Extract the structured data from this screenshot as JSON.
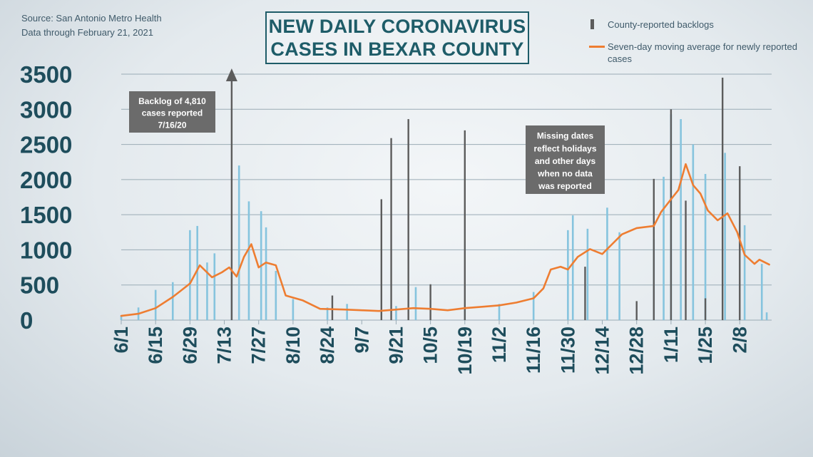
{
  "source_lines": [
    "Source: San Antonio Metro Health",
    "Data through  February 21, 2021"
  ],
  "title_lines": [
    "NEW DAILY CORONAVIRUS",
    "CASES IN BEXAR COUNTY"
  ],
  "legend": {
    "backlog_label": "County-reported backlogs",
    "average_label": "Seven-day moving average for newly reported cases"
  },
  "colors": {
    "daily_bar": "#86c4de",
    "backlog_bar": "#5c5c5c",
    "average_line": "#ee7d31",
    "axis_text": "#1e4d5c",
    "annotation_bg": "#6b6b6b",
    "grid": "#9aabb5"
  },
  "chart_data": {
    "type": "bar",
    "ylim": [
      0,
      3500
    ],
    "y_ticks": [
      0,
      500,
      1000,
      1500,
      2000,
      2500,
      3000,
      3500
    ],
    "x_ticks": [
      "6/1",
      "6/15",
      "6/29",
      "7/13",
      "7/27",
      "8/10",
      "8/24",
      "9/7",
      "9/21",
      "10/5",
      "10/19",
      "11/2",
      "11/16",
      "11/30",
      "12/14",
      "12/28",
      "1/11",
      "1/25",
      "2/8"
    ],
    "start_date": "2020-06-01",
    "end_date": "2021-02-21",
    "grid": true,
    "series": [
      {
        "name": "County-reported backlogs",
        "kind": "bar",
        "points": [
          {
            "x": "2020-07-16",
            "y": 3500,
            "arrow": true
          },
          {
            "x": "2020-08-26",
            "y": 350
          },
          {
            "x": "2020-09-15",
            "y": 1720
          },
          {
            "x": "2020-09-19",
            "y": 2590
          },
          {
            "x": "2020-09-26",
            "y": 2860
          },
          {
            "x": "2020-10-05",
            "y": 510
          },
          {
            "x": "2020-10-19",
            "y": 2700
          },
          {
            "x": "2020-12-07",
            "y": 760
          },
          {
            "x": "2020-12-28",
            "y": 270
          },
          {
            "x": "2021-01-04",
            "y": 2010
          },
          {
            "x": "2021-01-11",
            "y": 3000
          },
          {
            "x": "2021-01-17",
            "y": 1700
          },
          {
            "x": "2021-01-25",
            "y": 310
          },
          {
            "x": "2021-02-01",
            "y": 3450
          },
          {
            "x": "2021-02-08",
            "y": 2190
          }
        ]
      },
      {
        "name": "Seven-day moving average for newly reported cases",
        "kind": "line",
        "points": [
          {
            "x": "2020-06-01",
            "y": 60
          },
          {
            "x": "2020-06-08",
            "y": 90
          },
          {
            "x": "2020-06-15",
            "y": 170
          },
          {
            "x": "2020-06-22",
            "y": 330
          },
          {
            "x": "2020-06-29",
            "y": 520
          },
          {
            "x": "2020-07-03",
            "y": 780
          },
          {
            "x": "2020-07-08",
            "y": 610
          },
          {
            "x": "2020-07-12",
            "y": 680
          },
          {
            "x": "2020-07-15",
            "y": 750
          },
          {
            "x": "2020-07-18",
            "y": 620
          },
          {
            "x": "2020-07-21",
            "y": 900
          },
          {
            "x": "2020-07-24",
            "y": 1080
          },
          {
            "x": "2020-07-27",
            "y": 750
          },
          {
            "x": "2020-07-30",
            "y": 820
          },
          {
            "x": "2020-08-03",
            "y": 780
          },
          {
            "x": "2020-08-07",
            "y": 350
          },
          {
            "x": "2020-08-14",
            "y": 280
          },
          {
            "x": "2020-08-21",
            "y": 160
          },
          {
            "x": "2020-08-31",
            "y": 150
          },
          {
            "x": "2020-09-07",
            "y": 140
          },
          {
            "x": "2020-09-14",
            "y": 130
          },
          {
            "x": "2020-09-21",
            "y": 150
          },
          {
            "x": "2020-09-28",
            "y": 170
          },
          {
            "x": "2020-10-05",
            "y": 160
          },
          {
            "x": "2020-10-12",
            "y": 140
          },
          {
            "x": "2020-10-19",
            "y": 170
          },
          {
            "x": "2020-10-26",
            "y": 190
          },
          {
            "x": "2020-11-02",
            "y": 210
          },
          {
            "x": "2020-11-09",
            "y": 250
          },
          {
            "x": "2020-11-16",
            "y": 310
          },
          {
            "x": "2020-11-20",
            "y": 450
          },
          {
            "x": "2020-11-23",
            "y": 720
          },
          {
            "x": "2020-11-27",
            "y": 760
          },
          {
            "x": "2020-11-30",
            "y": 720
          },
          {
            "x": "2020-12-04",
            "y": 900
          },
          {
            "x": "2020-12-09",
            "y": 1010
          },
          {
            "x": "2020-12-14",
            "y": 940
          },
          {
            "x": "2020-12-18",
            "y": 1080
          },
          {
            "x": "2020-12-22",
            "y": 1220
          },
          {
            "x": "2020-12-28",
            "y": 1310
          },
          {
            "x": "2021-01-04",
            "y": 1340
          },
          {
            "x": "2021-01-07",
            "y": 1540
          },
          {
            "x": "2021-01-11",
            "y": 1720
          },
          {
            "x": "2021-01-14",
            "y": 1850
          },
          {
            "x": "2021-01-17",
            "y": 2220
          },
          {
            "x": "2021-01-20",
            "y": 1920
          },
          {
            "x": "2021-01-23",
            "y": 1800
          },
          {
            "x": "2021-01-26",
            "y": 1560
          },
          {
            "x": "2021-01-30",
            "y": 1420
          },
          {
            "x": "2021-02-03",
            "y": 1520
          },
          {
            "x": "2021-02-07",
            "y": 1250
          },
          {
            "x": "2021-02-10",
            "y": 930
          },
          {
            "x": "2021-02-14",
            "y": 800
          },
          {
            "x": "2021-02-16",
            "y": 860
          },
          {
            "x": "2021-02-20",
            "y": 790
          }
        ]
      },
      {
        "name": "Daily cases",
        "kind": "bar",
        "points": [
          {
            "x": "2020-06-01",
            "y": 60
          },
          {
            "x": "2020-06-08",
            "y": 180
          },
          {
            "x": "2020-06-15",
            "y": 430
          },
          {
            "x": "2020-06-22",
            "y": 540
          },
          {
            "x": "2020-06-29",
            "y": 1280
          },
          {
            "x": "2020-07-02",
            "y": 1340
          },
          {
            "x": "2020-07-06",
            "y": 820
          },
          {
            "x": "2020-07-09",
            "y": 950
          },
          {
            "x": "2020-07-16",
            "y": 700
          },
          {
            "x": "2020-07-19",
            "y": 2200
          },
          {
            "x": "2020-07-23",
            "y": 1690
          },
          {
            "x": "2020-07-28",
            "y": 1550
          },
          {
            "x": "2020-07-30",
            "y": 1320
          },
          {
            "x": "2020-08-03",
            "y": 700
          },
          {
            "x": "2020-08-10",
            "y": 300
          },
          {
            "x": "2020-08-24",
            "y": 180
          },
          {
            "x": "2020-09-01",
            "y": 230
          },
          {
            "x": "2020-09-21",
            "y": 200
          },
          {
            "x": "2020-09-29",
            "y": 470
          },
          {
            "x": "2020-10-19",
            "y": 180
          },
          {
            "x": "2020-11-02",
            "y": 230
          },
          {
            "x": "2020-11-16",
            "y": 400
          },
          {
            "x": "2020-11-30",
            "y": 1280
          },
          {
            "x": "2020-12-02",
            "y": 1490
          },
          {
            "x": "2020-12-08",
            "y": 1300
          },
          {
            "x": "2020-12-16",
            "y": 1600
          },
          {
            "x": "2020-12-21",
            "y": 1250
          },
          {
            "x": "2021-01-04",
            "y": 1150
          },
          {
            "x": "2021-01-08",
            "y": 2040
          },
          {
            "x": "2021-01-11",
            "y": 2930
          },
          {
            "x": "2021-01-15",
            "y": 2860
          },
          {
            "x": "2021-01-20",
            "y": 2500
          },
          {
            "x": "2021-01-25",
            "y": 2080
          },
          {
            "x": "2021-02-02",
            "y": 2380
          },
          {
            "x": "2021-02-10",
            "y": 1350
          },
          {
            "x": "2021-02-17",
            "y": 800
          },
          {
            "x": "2021-02-19",
            "y": 110
          }
        ]
      }
    ],
    "annotations": [
      {
        "lines": [
          "Backlog of 4,810",
          "cases reported",
          "7/16/20"
        ]
      },
      {
        "lines": [
          "Missing dates",
          "reflect holidays",
          "and other days",
          "when no data",
          "was reported"
        ]
      }
    ]
  }
}
